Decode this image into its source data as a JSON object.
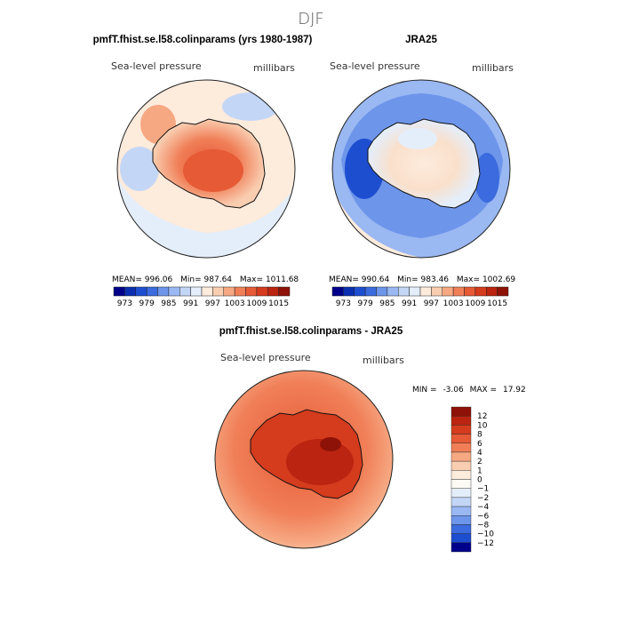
{
  "title": "DJF",
  "panels": [
    {
      "heading": "pmfT.fhist.se.l58.colinparams (yrs 1980-1987)",
      "variable": "Sea-level pressure",
      "units": "millibars",
      "stats": {
        "mean_label": "MEAN=",
        "mean": "996.06",
        "min_label": "Min=",
        "min": "987.64",
        "max_label": "Max=",
        "max": "1011.68"
      },
      "colorbar_labels": [
        "973",
        "979",
        "985",
        "991",
        "997",
        "1003",
        "1009",
        "1015"
      ]
    },
    {
      "heading": "JRA25",
      "variable": "Sea-level pressure",
      "units": "millibars",
      "stats": {
        "mean_label": "MEAN=",
        "mean": "990.64",
        "min_label": "Min=",
        "min": "983.46",
        "max_label": "Max=",
        "max": "1002.69"
      },
      "colorbar_labels": [
        "973",
        "979",
        "985",
        "991",
        "997",
        "1003",
        "1009",
        "1015"
      ]
    },
    {
      "heading": "pmfT.fhist.se.l58.colinparams - JRA25",
      "variable": "Sea-level pressure",
      "units": "millibars",
      "stats": {
        "min_label": "MIN =",
        "min": "-3.06",
        "max_label": "MAX =",
        "max": "17.92"
      },
      "colorbar_labels": [
        "12",
        "10",
        "8",
        "6",
        "4",
        "2",
        "1",
        "0",
        "−1",
        "−2",
        "−4",
        "−6",
        "−8",
        "−10",
        "−12"
      ]
    }
  ],
  "chart_data": [
    {
      "type": "heatmap",
      "projection": "south-polar-stereographic",
      "title": "pmfT.fhist.se.l58.colinparams (yrs 1980-1987)",
      "variable": "Sea-level pressure",
      "units": "millibars",
      "mean": 996.06,
      "min": 987.64,
      "max": 1011.68,
      "levels": [
        970,
        973,
        976,
        979,
        982,
        985,
        988,
        991,
        994,
        997,
        1000,
        1003,
        1006,
        1009,
        1012,
        1015
      ],
      "colorbar_ticks": [
        973,
        979,
        985,
        991,
        997,
        1003,
        1009,
        1015
      ],
      "colors": [
        "#00008b",
        "#0b2fb0",
        "#1e4ed0",
        "#3b6bde",
        "#6d95ea",
        "#9ab8f2",
        "#c3d6f6",
        "#e4eefb",
        "#fdebdc",
        "#f9cdb0",
        "#f6a882",
        "#f07f58",
        "#e65a36",
        "#d53b1d",
        "#bb2410",
        "#8e1207"
      ]
    },
    {
      "type": "heatmap",
      "projection": "south-polar-stereographic",
      "title": "JRA25",
      "variable": "Sea-level pressure",
      "units": "millibars",
      "mean": 990.64,
      "min": 983.46,
      "max": 1002.69,
      "levels": [
        970,
        973,
        976,
        979,
        982,
        985,
        988,
        991,
        994,
        997,
        1000,
        1003,
        1006,
        1009,
        1012,
        1015
      ],
      "colorbar_ticks": [
        973,
        979,
        985,
        991,
        997,
        1003,
        1009,
        1015
      ],
      "colors": [
        "#00008b",
        "#0b2fb0",
        "#1e4ed0",
        "#3b6bde",
        "#6d95ea",
        "#9ab8f2",
        "#c3d6f6",
        "#e4eefb",
        "#fdebdc",
        "#f9cdb0",
        "#f6a882",
        "#f07f58",
        "#e65a36",
        "#d53b1d",
        "#bb2410",
        "#8e1207"
      ]
    },
    {
      "type": "heatmap",
      "projection": "south-polar-stereographic",
      "title": "pmfT.fhist.se.l58.colinparams - JRA25",
      "variable": "Sea-level pressure",
      "units": "millibars",
      "min": -3.06,
      "max": 17.92,
      "levels": [
        -12,
        -10,
        -8,
        -6,
        -4,
        -2,
        -1,
        0,
        1,
        2,
        4,
        6,
        8,
        10,
        12
      ],
      "colorbar_ticks": [
        12,
        10,
        8,
        6,
        4,
        2,
        1,
        0,
        -1,
        -2,
        -4,
        -6,
        -8,
        -10,
        -12
      ],
      "colors": [
        "#8e1207",
        "#bb2410",
        "#d53b1d",
        "#e65a36",
        "#f07f58",
        "#f6a882",
        "#f9cdb0",
        "#fdebdc",
        "#fdfaf5",
        "#e4eefb",
        "#c3d6f6",
        "#9ab8f2",
        "#6d95ea",
        "#3b6bde",
        "#1e4ed0",
        "#00008b"
      ]
    }
  ]
}
